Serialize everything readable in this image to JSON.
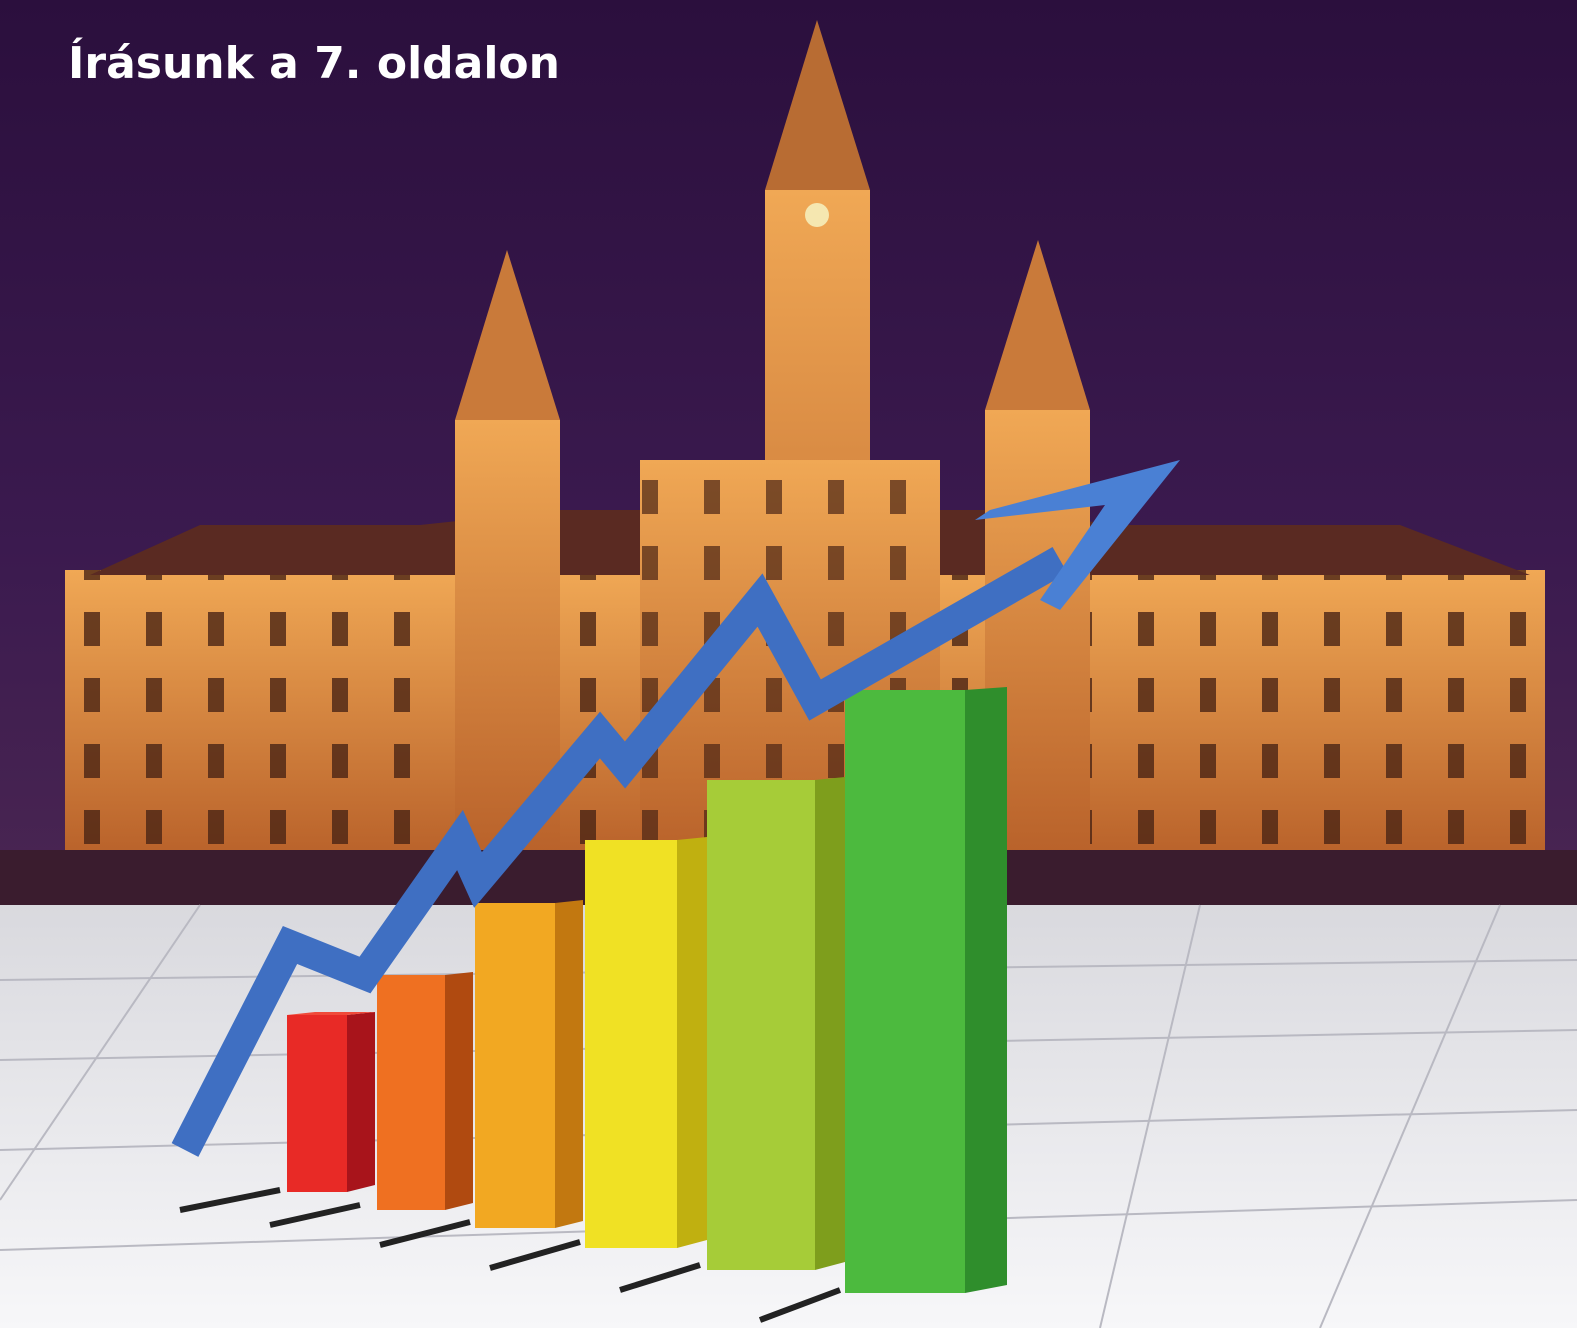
{
  "caption": "Írásunk a 7. oldalon"
}
